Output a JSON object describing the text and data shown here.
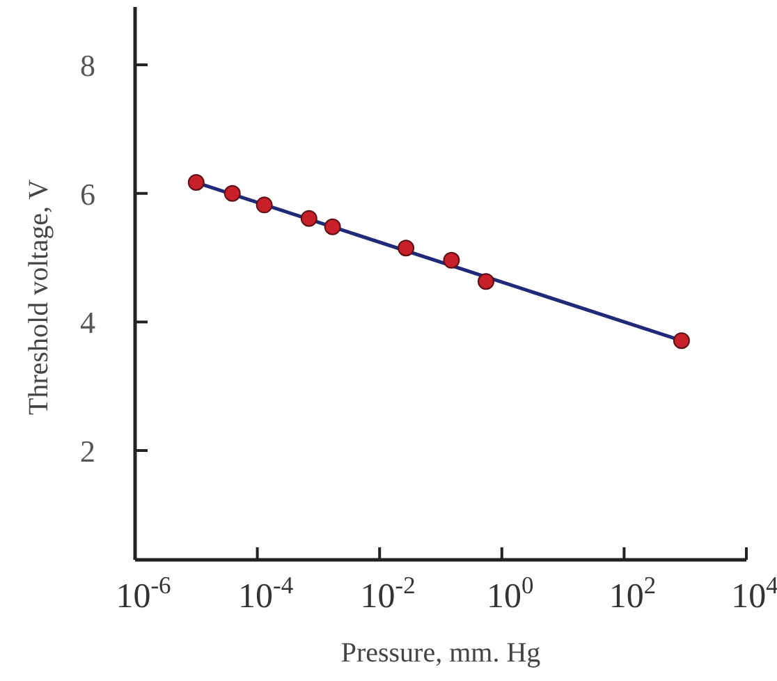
{
  "chart_data": {
    "type": "scatter",
    "xlabel": "Pressure, mm. Hg",
    "ylabel": "Threshold voltage, V",
    "log": "x",
    "xlim": [
      1e-06,
      10000
    ],
    "ylim": [
      0.3,
      8.9
    ],
    "xticks": [
      {
        "value": 1e-06,
        "label": "10$^{-6}$"
      },
      {
        "value": 0.0001,
        "label": "10$^{-4}$"
      },
      {
        "value": 0.01,
        "label": "10$^{-2}$"
      },
      {
        "value": 1,
        "label": "10$^{0}$"
      },
      {
        "value": 100,
        "label": "10$^{2}$"
      },
      {
        "value": 10000,
        "label": "10$^{4}$"
      }
    ],
    "yticks": [
      2,
      4,
      6,
      8
    ],
    "grid": false,
    "series": [
      {
        "type": "line",
        "color": "#1f2a78",
        "x": [
          1e-05,
          870
        ],
        "values": [
          6.17,
          3.71
        ],
        "line_style": "solid"
      },
      {
        "color": "#c8202a",
        "marker": "circle",
        "x": [
          1e-05,
          3.9e-05,
          0.00013,
          0.0007,
          0.0017,
          0.027,
          0.15,
          0.55,
          870
        ],
        "values": [
          6.17,
          6.0,
          5.82,
          5.61,
          5.48,
          5.15,
          4.96,
          4.63,
          3.71
        ]
      }
    ]
  }
}
